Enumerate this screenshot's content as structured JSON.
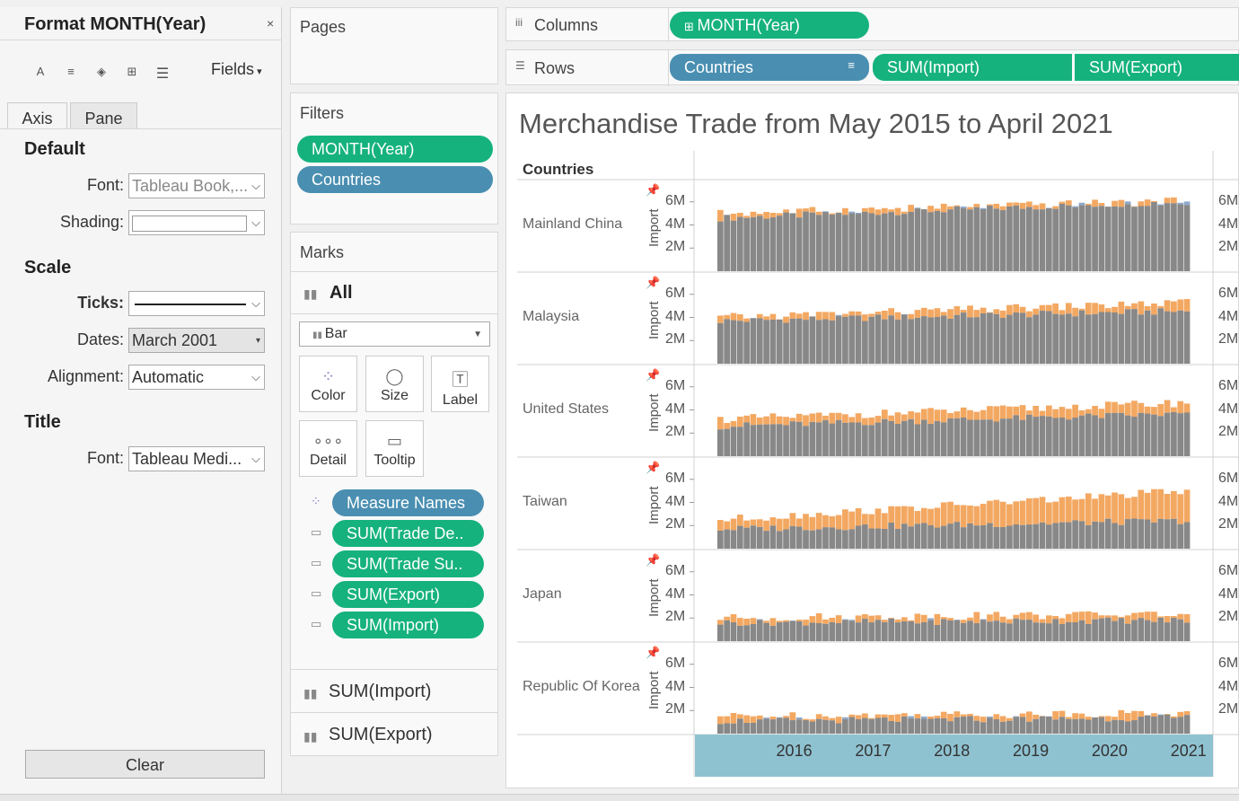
{
  "format_pane": {
    "title": "Format MONTH(Year)",
    "close": "×",
    "fields_label": "Fields",
    "tabs": [
      "Axis",
      "Pane"
    ],
    "default_section": "Default",
    "font_label": "Font:",
    "font_value": "Tableau Book,...",
    "shading_label": "Shading:",
    "scale_section": "Scale",
    "ticks_label": "Ticks:",
    "dates_label": "Dates:",
    "dates_value": "March 2001",
    "alignment_label": "Alignment:",
    "alignment_value": "Automatic",
    "title_section": "Title",
    "title_font_label": "Font:",
    "title_font_value": "Tableau Medi...",
    "clear_label": "Clear"
  },
  "pages": {
    "title": "Pages"
  },
  "filters": {
    "title": "Filters",
    "pills": [
      "MONTH(Year)",
      "Countries"
    ]
  },
  "marks": {
    "title": "Marks",
    "all_label": "All",
    "mark_type": "Bar",
    "buttons": [
      "Color",
      "Size",
      "Label",
      "Detail",
      "Tooltip"
    ],
    "pills": [
      "Measure Names",
      "SUM(Trade De..",
      "SUM(Trade Su..",
      "SUM(Export)",
      "SUM(Import)"
    ],
    "sub_cards": [
      "SUM(Import)",
      "SUM(Export)"
    ]
  },
  "shelves": {
    "columns_label": "Columns",
    "columns_pill": "MONTH(Year)",
    "rows_label": "Rows",
    "rows_pills": [
      "Countries",
      "SUM(Import)",
      "SUM(Export)"
    ]
  },
  "colors": {
    "green": "#16b27e",
    "blue": "#4a8fb1",
    "import": "#888888",
    "export": "#f3a862",
    "surplus": "#8ca9cc",
    "axisband": "#8fc2d1"
  },
  "chart_data": {
    "type": "bar",
    "title": "Merchandise Trade from May 2015 to April 2021",
    "row_header": "Countries",
    "ylabel": "Import",
    "y_ticks": [
      "6M",
      "4M",
      "2M"
    ],
    "y_ticks_right": [
      "6M",
      "4M",
      "2M"
    ],
    "ylim": [
      0,
      8000000
    ],
    "x_ticks": [
      "2016",
      "2017",
      "2018",
      "2019",
      "2020",
      "2021"
    ],
    "x_start": "2015-05",
    "x_end": "2021-04",
    "series_names": [
      "Import",
      "Export"
    ],
    "countries": [
      {
        "name": "Mainland China",
        "import_base": 4.6,
        "import_trend": 0.02,
        "export_base": 5.0,
        "export_trend": 0.015,
        "note": "export mostly below import, blue overlay above"
      },
      {
        "name": "Malaysia",
        "import_base": 3.7,
        "import_trend": 0.012,
        "export_base": 4.0,
        "export_trend": 0.018
      },
      {
        "name": "United States",
        "import_base": 2.6,
        "import_trend": 0.015,
        "export_base": 3.2,
        "export_trend": 0.02
      },
      {
        "name": "Taiwan",
        "import_base": 1.7,
        "import_trend": 0.01,
        "export_base": 2.5,
        "export_trend": 0.035
      },
      {
        "name": "Japan",
        "import_base": 1.6,
        "import_trend": 0.003,
        "export_base": 2.0,
        "export_trend": 0.005
      },
      {
        "name": "Republic Of Korea",
        "import_base": 1.1,
        "import_trend": 0.004,
        "export_base": 1.5,
        "export_trend": 0.004
      }
    ]
  }
}
